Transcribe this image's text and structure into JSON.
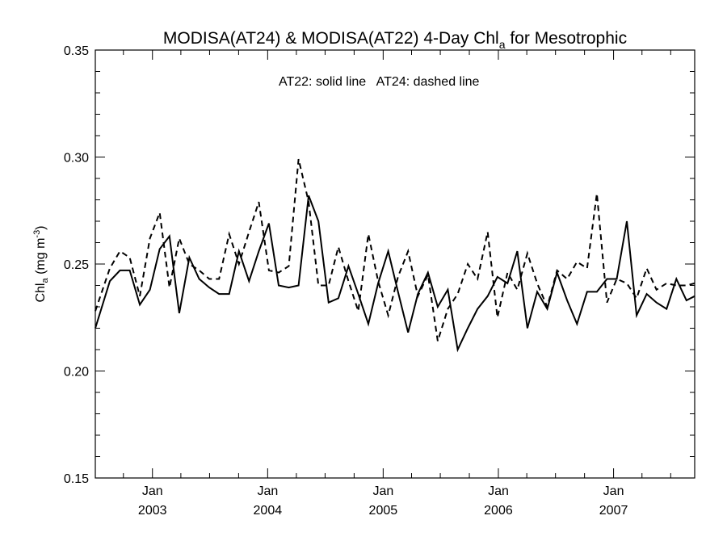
{
  "chart_data": {
    "type": "line",
    "title": "MODISA(AT24) & MODISA(AT22) 4-Day Chl",
    "title_sub": "a",
    "title_tail": " for Mesotrophic",
    "ylabel": "Chl",
    "ylabel_sub": "a",
    "ylabel_unit": " (mg m",
    "ylabel_unit_sup": "-3",
    "ylabel_close": ")",
    "annotation": "AT22: solid line   AT24: dashed line",
    "ylim": [
      0.15,
      0.35
    ],
    "y_ticks": [
      "0.15",
      "0.20",
      "0.25",
      "0.30",
      "0.35"
    ],
    "xlim": [
      "2002-07-04",
      "2007-09-15"
    ],
    "x_ticks": [
      {
        "date": "2003-01-01",
        "month": "Jan",
        "year": "2003"
      },
      {
        "date": "2004-01-01",
        "month": "Jan",
        "year": "2004"
      },
      {
        "date": "2005-01-01",
        "month": "Jan",
        "year": "2005"
      },
      {
        "date": "2006-01-01",
        "month": "Jan",
        "year": "2006"
      },
      {
        "date": "2007-01-01",
        "month": "Jan",
        "year": "2007"
      }
    ],
    "grid": false,
    "series": [
      {
        "name": "AT22",
        "style": "solid",
        "color": "#000000",
        "x": [
          "2002-07-04",
          "2002-08-19",
          "2002-09-20",
          "2002-10-21",
          "2002-11-22",
          "2002-12-24",
          "2003-01-24",
          "2003-02-24",
          "2003-03-27",
          "2003-04-28",
          "2003-05-29",
          "2003-06-30",
          "2003-07-31",
          "2003-09-01",
          "2003-10-02",
          "2003-11-03",
          "2003-12-04",
          "2004-01-05",
          "2004-02-05",
          "2004-03-08",
          "2004-04-08",
          "2004-05-10",
          "2004-06-10",
          "2004-07-12",
          "2004-08-12",
          "2004-09-13",
          "2004-10-14",
          "2004-11-15",
          "2004-12-16",
          "2005-01-17",
          "2005-02-17",
          "2005-03-21",
          "2005-04-21",
          "2005-05-23",
          "2005-06-23",
          "2005-07-25",
          "2005-08-25",
          "2005-09-26",
          "2005-10-27",
          "2005-11-28",
          "2005-12-29",
          "2006-01-30",
          "2006-03-02",
          "2006-04-03",
          "2006-05-04",
          "2006-06-05",
          "2006-07-06",
          "2006-08-07",
          "2006-09-07",
          "2006-10-09",
          "2006-11-09",
          "2006-12-11",
          "2007-01-11",
          "2007-02-12",
          "2007-03-15",
          "2007-04-16",
          "2007-05-17",
          "2007-06-18",
          "2007-07-19",
          "2007-08-20",
          "2007-09-15"
        ],
        "values": [
          0.22,
          0.242,
          0.247,
          0.247,
          0.231,
          0.238,
          0.257,
          0.263,
          0.227,
          0.253,
          0.243,
          0.239,
          0.236,
          0.236,
          0.256,
          0.242,
          0.256,
          0.269,
          0.24,
          0.239,
          0.24,
          0.282,
          0.27,
          0.232,
          0.234,
          0.249,
          0.236,
          0.222,
          0.241,
          0.256,
          0.237,
          0.218,
          0.236,
          0.246,
          0.23,
          0.238,
          0.21,
          0.22,
          0.229,
          0.235,
          0.244,
          0.241,
          0.256,
          0.22,
          0.237,
          0.229,
          0.246,
          0.233,
          0.222,
          0.237,
          0.237,
          0.243,
          0.243,
          0.27,
          0.226,
          0.236,
          0.232,
          0.229,
          0.243,
          0.233,
          0.235
        ]
      },
      {
        "name": "AT24",
        "style": "dashed",
        "color": "#000000",
        "x": [
          "2002-07-04",
          "2002-08-19",
          "2002-09-20",
          "2002-10-21",
          "2002-11-22",
          "2002-12-24",
          "2003-01-24",
          "2003-02-24",
          "2003-03-27",
          "2003-04-28",
          "2003-05-29",
          "2003-06-30",
          "2003-07-31",
          "2003-09-01",
          "2003-10-02",
          "2003-11-03",
          "2003-12-04",
          "2004-01-05",
          "2004-02-05",
          "2004-03-08",
          "2004-04-08",
          "2004-05-10",
          "2004-06-10",
          "2004-07-12",
          "2004-08-12",
          "2004-09-13",
          "2004-10-14",
          "2004-11-15",
          "2004-12-16",
          "2005-01-17",
          "2005-02-17",
          "2005-03-21",
          "2005-04-21",
          "2005-05-23",
          "2005-06-23",
          "2005-07-25",
          "2005-08-25",
          "2005-09-26",
          "2005-10-27",
          "2005-11-28",
          "2005-12-29",
          "2006-01-30",
          "2006-03-02",
          "2006-04-03",
          "2006-05-04",
          "2006-06-05",
          "2006-07-06",
          "2006-08-07",
          "2006-09-07",
          "2006-10-09",
          "2006-11-09",
          "2006-12-11",
          "2007-01-11",
          "2007-02-12",
          "2007-03-15",
          "2007-04-16",
          "2007-05-17",
          "2007-06-18",
          "2007-07-19",
          "2007-08-20",
          "2007-09-15"
        ],
        "values": [
          0.228,
          0.248,
          0.256,
          0.253,
          0.235,
          0.262,
          0.274,
          0.239,
          0.262,
          0.25,
          0.247,
          0.243,
          0.243,
          0.264,
          0.25,
          0.265,
          0.279,
          0.247,
          0.246,
          0.249,
          0.299,
          0.279,
          0.24,
          0.24,
          0.258,
          0.242,
          0.228,
          0.264,
          0.242,
          0.226,
          0.244,
          0.256,
          0.235,
          0.245,
          0.214,
          0.229,
          0.236,
          0.25,
          0.243,
          0.265,
          0.225,
          0.246,
          0.238,
          0.255,
          0.241,
          0.23,
          0.247,
          0.243,
          0.251,
          0.248,
          0.283,
          0.232,
          0.243,
          0.241,
          0.234,
          0.248,
          0.238,
          0.241,
          0.24,
          0.24,
          0.241
        ]
      }
    ]
  }
}
